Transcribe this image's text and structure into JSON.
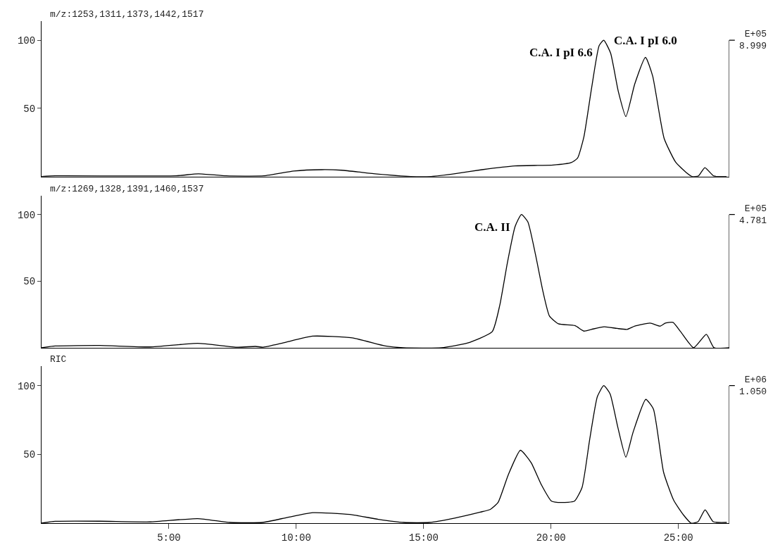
{
  "chart_data": [
    {
      "type": "line",
      "title": "m/z:1253,1311,1373,1442,1517",
      "color": "#000000",
      "tick_labels": "y",
      "marker": "none",
      "line_style": "solid",
      "x": [
        0,
        0.54,
        5.28,
        6.16,
        7.25,
        8.73,
        9.91,
        11.0,
        11.78,
        13.17,
        14.49,
        15.29,
        16.29,
        17.29,
        18.59,
        20.09,
        20.79,
        21.04,
        21.29,
        21.59,
        21.89,
        22.07,
        22.34,
        22.64,
        22.94,
        23.29,
        23.71,
        23.99,
        24.44,
        24.89,
        25.29,
        25.54,
        25.79,
        26.04,
        26.39,
        26.89
      ],
      "values": [
        0,
        0.5,
        0.5,
        2,
        0.5,
        0.5,
        4,
        5,
        4.6,
        1.8,
        0,
        0,
        2.2,
        5,
        7.8,
        8.4,
        10.2,
        13.4,
        29,
        64.5,
        96,
        100,
        90.5,
        62.6,
        44,
        68,
        87.4,
        73.8,
        28,
        10.6,
        3.2,
        0,
        0.4,
        6.5,
        0.4,
        0
      ],
      "xlim": [
        0,
        27
      ],
      "ylim": [
        0,
        114
      ],
      "yticks": [
        50,
        100
      ],
      "annotations": [
        "E+05\n8.999",
        {
          "text": "C.A. I pI 6.6",
          "x": 22.07,
          "y": 100
        },
        {
          "text": "C.A. I pI 6.0",
          "x": 23.71,
          "y": 87.4
        }
      ]
    },
    {
      "type": "line",
      "title": "m/z:1269,1328,1391,1460,1537",
      "color": "#000000",
      "tick_labels": "y",
      "marker": "none",
      "line_style": "solid",
      "x": [
        0,
        0.54,
        2.3,
        4.26,
        6.13,
        7.7,
        8.4,
        8.7,
        9.5,
        10.64,
        12.2,
        13.5,
        14.2,
        15.7,
        16.7,
        17.69,
        17.99,
        18.29,
        18.59,
        18.84,
        19.09,
        19.39,
        19.69,
        19.94,
        20.29,
        20.94,
        21.29,
        21.59,
        22.09,
        22.59,
        22.99,
        23.29,
        23.89,
        24.29,
        24.49,
        24.79,
        25.09,
        25.6,
        26.1,
        26.4,
        27
      ],
      "values": [
        0,
        1.3,
        1.7,
        0.6,
        3.3,
        0.4,
        1,
        0.4,
        3.7,
        8.7,
        7.4,
        1.3,
        0,
        0,
        3.4,
        12,
        32,
        64,
        91,
        100,
        94.5,
        70,
        41.7,
        23.8,
        18,
        16.6,
        12.5,
        13.8,
        15.7,
        14.5,
        13.8,
        16.2,
        18.5,
        16.2,
        18.5,
        19,
        12,
        0,
        10,
        0,
        0
      ],
      "xlim": [
        0,
        27
      ],
      "ylim": [
        0,
        114
      ],
      "yticks": [
        50,
        100
      ],
      "annotations": [
        "E+05\n4.781",
        {
          "text": "C.A. II",
          "x": 18.84,
          "y": 100
        }
      ]
    },
    {
      "type": "line",
      "title": "RIC",
      "color": "#000000",
      "marker": "none",
      "line_style": "solid",
      "x": [
        0,
        0.54,
        2.3,
        4.26,
        6.13,
        7.4,
        8.68,
        9.66,
        10.64,
        12.1,
        13.22,
        14.22,
        15.22,
        16.22,
        17.22,
        17.62,
        17.92,
        18.32,
        18.8,
        19.22,
        19.62,
        20.02,
        20.42,
        20.92,
        21.22,
        21.52,
        21.82,
        22.07,
        22.32,
        22.62,
        22.94,
        23.22,
        23.72,
        24.02,
        24.42,
        24.82,
        25.22,
        25.5,
        25.77,
        26.05,
        26.37,
        26.9
      ],
      "values": [
        0,
        1.3,
        1.4,
        0.9,
        3.3,
        0.5,
        0.5,
        4.2,
        7.6,
        6.3,
        2.8,
        0.5,
        0.5,
        3.7,
        8,
        10,
        15,
        35,
        53,
        44,
        28,
        16,
        15,
        16,
        26,
        61,
        92,
        100,
        94,
        70,
        48,
        66,
        90,
        83,
        37,
        16.5,
        5.5,
        0,
        1,
        9.7,
        1,
        0.5
      ],
      "xlim": [
        0,
        27
      ],
      "ylim": [
        0,
        114
      ],
      "yticks": [
        50,
        100
      ],
      "xticks": [
        {
          "value": 5,
          "label": "5:00"
        },
        {
          "value": 10,
          "label": "10:00"
        },
        {
          "value": 15,
          "label": "15:00"
        },
        {
          "value": 20,
          "label": "20:00"
        },
        {
          "value": 25,
          "label": "25:00"
        }
      ],
      "annotations": [
        "E+06\n1.050"
      ]
    }
  ]
}
